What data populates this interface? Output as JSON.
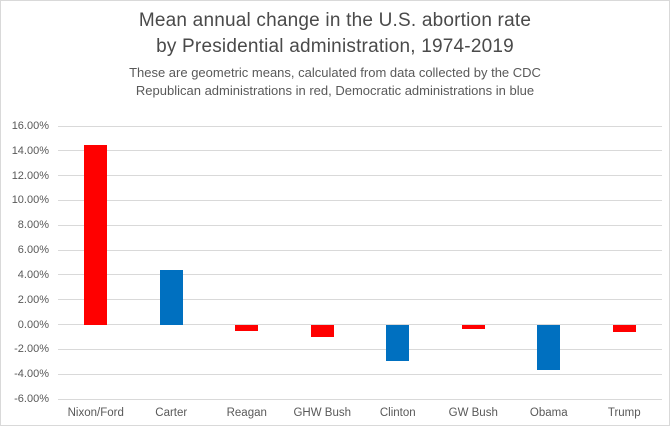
{
  "chart_data": {
    "type": "bar",
    "title": "Mean annual change in the U.S. abortion rate by Presidential administration, 1974-2019",
    "title_lines": [
      "Mean annual change in the U.S. abortion rate",
      "by Presidential administration, 1974-2019"
    ],
    "subtitle_lines": [
      "These are geometric means, calculated from data collected by the CDC",
      "Republican administrations in red, Democratic administrations in blue"
    ],
    "categories": [
      "Nixon/Ford",
      "Carter",
      "Reagan",
      "GHW Bush",
      "Clinton",
      "GW Bush",
      "Obama",
      "Trump"
    ],
    "values": [
      14.5,
      4.4,
      -0.5,
      -1.0,
      -2.9,
      -0.4,
      -3.7,
      -0.6
    ],
    "parties": [
      "R",
      "D",
      "R",
      "R",
      "D",
      "R",
      "D",
      "R"
    ],
    "party_colors": {
      "R": "#ff0000",
      "D": "#0070c0"
    },
    "xlabel": "",
    "ylabel": "",
    "ylim": [
      -6,
      16
    ],
    "y_ticks": [
      {
        "value": 16,
        "label": "16.00%"
      },
      {
        "value": 14,
        "label": "14.00%"
      },
      {
        "value": 12,
        "label": "12.00%"
      },
      {
        "value": 10,
        "label": "10.00%"
      },
      {
        "value": 8,
        "label": "8.00%"
      },
      {
        "value": 6,
        "label": "6.00%"
      },
      {
        "value": 4,
        "label": "4.00%"
      },
      {
        "value": 2,
        "label": "2.00%"
      },
      {
        "value": 0,
        "label": "0.00%"
      },
      {
        "value": -2,
        "label": "-2.00%"
      },
      {
        "value": -4,
        "label": "-4.00%"
      },
      {
        "value": -6,
        "label": "-6.00%"
      }
    ],
    "grid": true,
    "gridline_color": "#d9d9d9",
    "legend": "none"
  }
}
